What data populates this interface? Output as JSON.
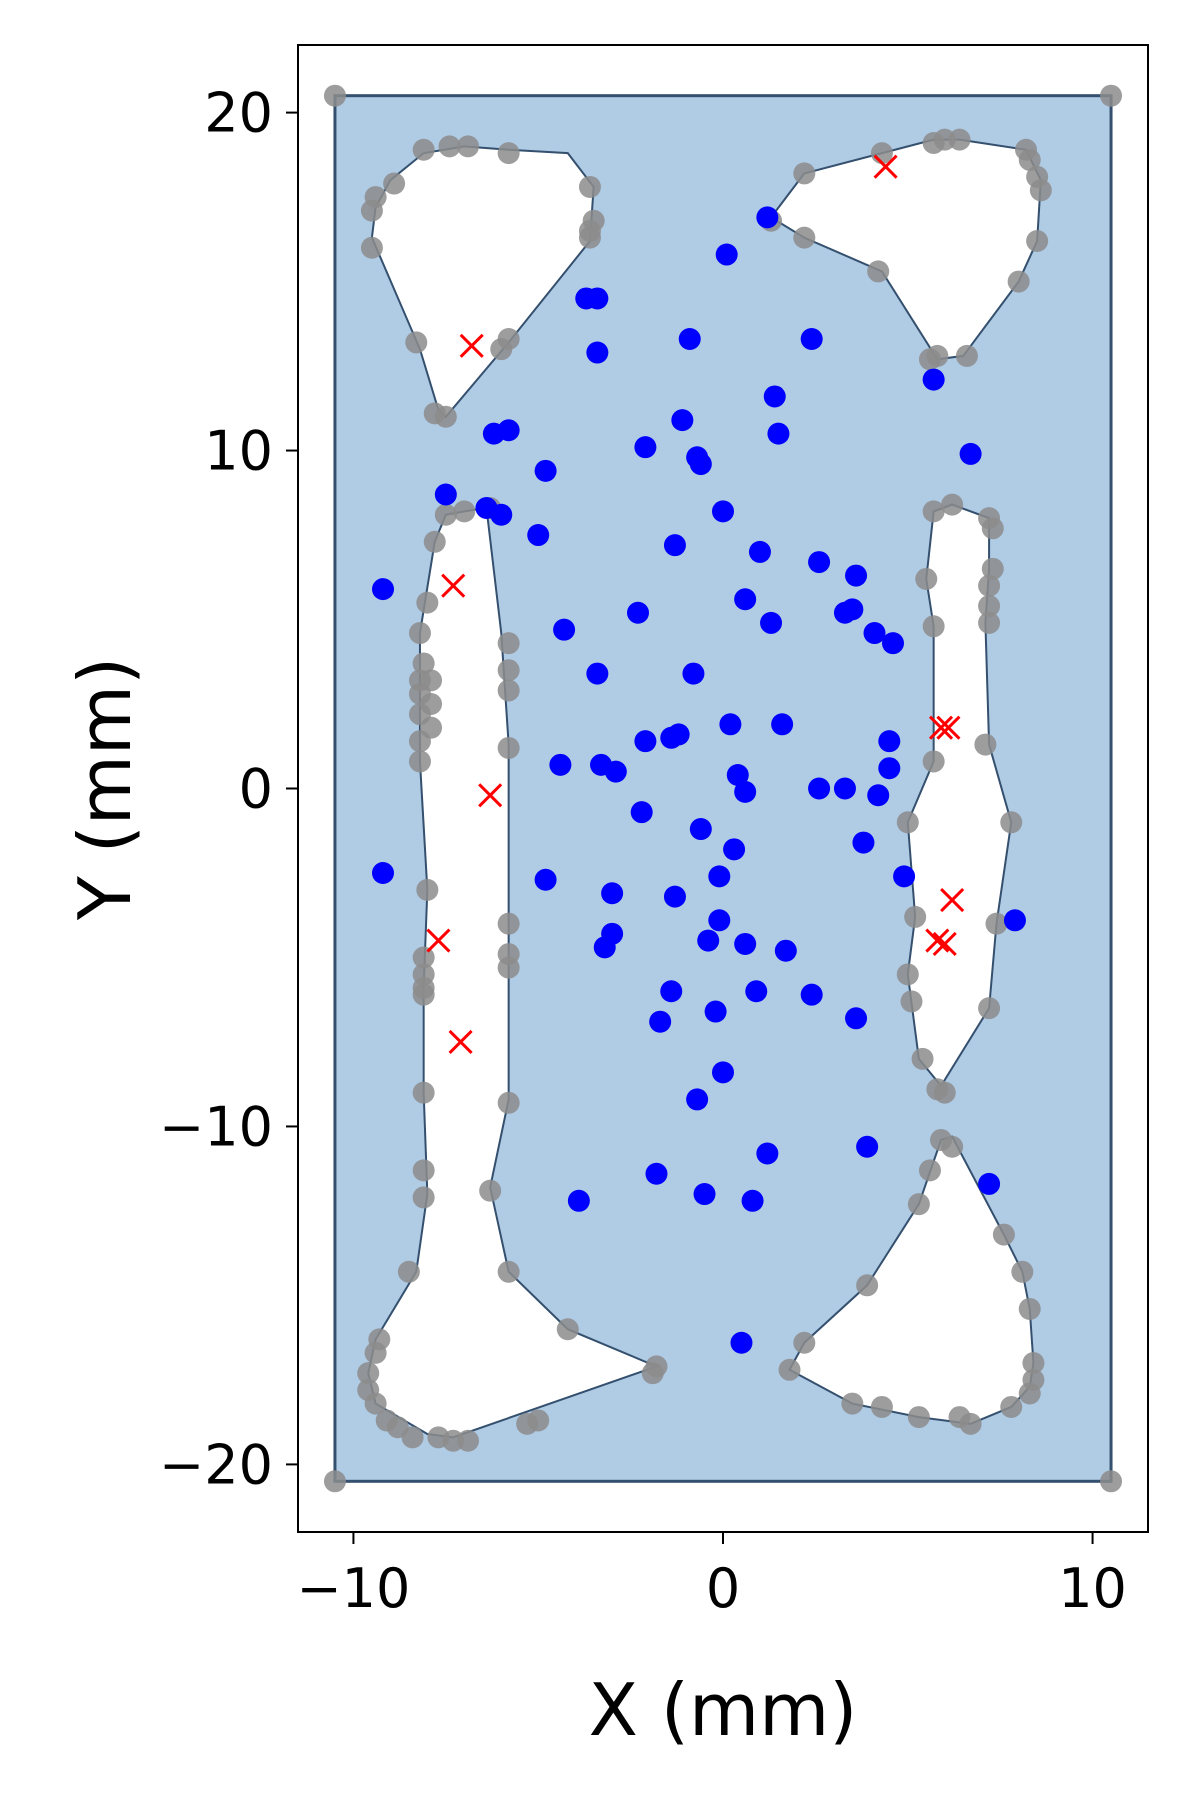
{
  "chart_data": {
    "type": "scatter",
    "title": "",
    "xlabel": "X (mm)",
    "ylabel": "Y (mm)",
    "xlim": [
      -11.5,
      11.5
    ],
    "ylim": [
      -22,
      22
    ],
    "xticks": [
      -10,
      0,
      10
    ],
    "xtick_labels": [
      "−10",
      "0",
      "10"
    ],
    "yticks": [
      -20,
      -10,
      0,
      10,
      20
    ],
    "ytick_labels": [
      "−20",
      "−10",
      "0",
      "10",
      "20"
    ],
    "grid": false,
    "legend": "none",
    "colors": {
      "domain_fill": "#b0cbe4",
      "domain_edge": "#34506e",
      "boundary_points": "#8c8c8c",
      "interior_points": "#0000ff",
      "cross_markers": "#ff0000"
    },
    "domain_rectangle": {
      "x": [
        -10.5,
        10.5
      ],
      "y": [
        -20.5,
        20.5
      ]
    },
    "holes": [
      [
        [
          -7,
          19
        ],
        [
          -8.1,
          18.8
        ],
        [
          -9,
          18
        ],
        [
          -9.4,
          17.2
        ],
        [
          -9.5,
          16.3
        ],
        [
          -8.2,
          13
        ],
        [
          -7.7,
          11.2
        ],
        [
          -7.5,
          11
        ],
        [
          -5.8,
          13.2
        ],
        [
          -3.6,
          16.2
        ],
        [
          -3.5,
          17.8
        ],
        [
          -4.2,
          18.8
        ],
        [
          -5.8,
          18.9
        ]
      ],
      [
        [
          2.2,
          18.2
        ],
        [
          4.3,
          18.8
        ],
        [
          5.7,
          19.2
        ],
        [
          6.4,
          19.2
        ],
        [
          8.2,
          18.9
        ],
        [
          8.6,
          18
        ],
        [
          8.5,
          16.2
        ],
        [
          8,
          15
        ],
        [
          6.5,
          12.8
        ],
        [
          5.8,
          12.7
        ],
        [
          4.3,
          15.3
        ],
        [
          2.2,
          16.3
        ],
        [
          1.3,
          16.9
        ]
      ],
      [
        [
          -7.8,
          7.3
        ],
        [
          -7.5,
          8.1
        ],
        [
          -7,
          8.2
        ],
        [
          -6.4,
          8.3
        ],
        [
          -6,
          4.6
        ],
        [
          -5.8,
          1.3
        ],
        [
          -5.8,
          -4
        ],
        [
          -5.8,
          -9.2
        ],
        [
          -6.3,
          -11.8
        ],
        [
          -5.8,
          -14.3
        ],
        [
          -4.2,
          -16
        ],
        [
          -1.8,
          -17.1
        ],
        [
          -7.3,
          -19.2
        ],
        [
          -8,
          -19.1
        ],
        [
          -9.4,
          -18.2
        ],
        [
          -9.6,
          -17.3
        ],
        [
          -9.4,
          -16.3
        ],
        [
          -8.3,
          -14.3
        ],
        [
          -8,
          -12
        ],
        [
          -8.1,
          -9
        ],
        [
          -8.1,
          -5.9
        ],
        [
          -8,
          -3
        ],
        [
          -8.2,
          0.8
        ],
        [
          -8.2,
          4.6
        ]
      ],
      [
        [
          5.7,
          8.2
        ],
        [
          6.2,
          8.4
        ],
        [
          7.2,
          8
        ],
        [
          7.2,
          6.5
        ],
        [
          7.1,
          4.9
        ],
        [
          7.2,
          1.3
        ],
        [
          7.8,
          -1
        ],
        [
          7.4,
          -4
        ],
        [
          7.2,
          -6.5
        ],
        [
          5.9,
          -8.8
        ],
        [
          5.3,
          -8
        ],
        [
          5,
          -5.5
        ],
        [
          5.2,
          -3.8
        ],
        [
          5,
          -1
        ],
        [
          5.7,
          0.8
        ],
        [
          5.7,
          4.8
        ],
        [
          5.5,
          6.2
        ]
      ],
      [
        [
          1.8,
          -17.2
        ],
        [
          2.2,
          -16.4
        ],
        [
          3.9,
          -14.7
        ],
        [
          5.3,
          -12.3
        ],
        [
          5.9,
          -10.4
        ],
        [
          6.2,
          -10.3
        ],
        [
          7.6,
          -13.2
        ],
        [
          8.1,
          -14.3
        ],
        [
          8.3,
          -15.4
        ],
        [
          8.4,
          -17
        ],
        [
          8.3,
          -17.7
        ],
        [
          7.8,
          -18.3
        ],
        [
          6.7,
          -18.8
        ],
        [
          5.3,
          -18.6
        ],
        [
          3.5,
          -18.2
        ]
      ]
    ],
    "boundary_points": [
      [
        -10.5,
        20.5
      ],
      [
        10.5,
        20.5
      ],
      [
        -10.5,
        -20.5
      ],
      [
        10.5,
        -20.5
      ],
      [
        -8.1,
        18.9
      ],
      [
        -7.4,
        19
      ],
      [
        -6.9,
        19
      ],
      [
        -5.8,
        18.8
      ],
      [
        -8.9,
        17.9
      ],
      [
        -9.5,
        17.1
      ],
      [
        -9.4,
        17.5
      ],
      [
        -9.5,
        16
      ],
      [
        -8.3,
        13.2
      ],
      [
        -7.8,
        11.1
      ],
      [
        -7.5,
        11
      ],
      [
        -5.8,
        13.3
      ],
      [
        -6,
        13
      ],
      [
        -3.6,
        16.3
      ],
      [
        -3.5,
        16.8
      ],
      [
        -3.6,
        17.8
      ],
      [
        -3.6,
        16.5
      ],
      [
        2.2,
        18.2
      ],
      [
        4.3,
        18.8
      ],
      [
        5.7,
        19.1
      ],
      [
        6,
        19.2
      ],
      [
        6.4,
        19.2
      ],
      [
        8.2,
        18.9
      ],
      [
        8.3,
        18.6
      ],
      [
        8.5,
        18.1
      ],
      [
        8.6,
        17.7
      ],
      [
        8.5,
        16.2
      ],
      [
        8,
        15
      ],
      [
        6.6,
        12.8
      ],
      [
        5.8,
        12.8
      ],
      [
        5.6,
        12.7
      ],
      [
        4.2,
        15.3
      ],
      [
        2.2,
        16.3
      ],
      [
        1.3,
        16.8
      ],
      [
        -7.8,
        7.3
      ],
      [
        -7.5,
        8.1
      ],
      [
        -7,
        8.2
      ],
      [
        -6.3,
        8.3
      ],
      [
        -8,
        5.5
      ],
      [
        -8.2,
        4.6
      ],
      [
        -8.2,
        3.2
      ],
      [
        -8.2,
        2.8
      ],
      [
        -8.2,
        2.2
      ],
      [
        -8.2,
        1.4
      ],
      [
        -8.2,
        0.8
      ],
      [
        -8.1,
        3.7
      ],
      [
        -7.9,
        3.2
      ],
      [
        -7.9,
        2.5
      ],
      [
        -7.9,
        1.8
      ],
      [
        -5.8,
        4.3
      ],
      [
        -5.8,
        3.5
      ],
      [
        -5.8,
        2.9
      ],
      [
        -5.8,
        1.2
      ],
      [
        -5.8,
        -4
      ],
      [
        -5.8,
        -4.9
      ],
      [
        -5.8,
        -5.3
      ],
      [
        -5.8,
        -9.3
      ],
      [
        -6.3,
        -11.9
      ],
      [
        -5.8,
        -14.3
      ],
      [
        -4.2,
        -16
      ],
      [
        -8,
        -3
      ],
      [
        -8.1,
        -5
      ],
      [
        -8.1,
        -5.5
      ],
      [
        -8.1,
        -5.9
      ],
      [
        -8.1,
        -6.1
      ],
      [
        -8.1,
        -9
      ],
      [
        -8.1,
        -11.3
      ],
      [
        -8.1,
        -12.1
      ],
      [
        -8.5,
        -14.3
      ],
      [
        -9.3,
        -16.3
      ],
      [
        -9.4,
        -16.7
      ],
      [
        -9.6,
        -17.3
      ],
      [
        -9.6,
        -17.8
      ],
      [
        -9.4,
        -18.2
      ],
      [
        -9.1,
        -18.7
      ],
      [
        -8.8,
        -18.9
      ],
      [
        -8.4,
        -19.2
      ],
      [
        -7.7,
        -19.2
      ],
      [
        -7.3,
        -19.3
      ],
      [
        -6.9,
        -19.3
      ],
      [
        -5.3,
        -18.8
      ],
      [
        -5,
        -18.7
      ],
      [
        -1.8,
        -17.1
      ],
      [
        -1.9,
        -17.3
      ],
      [
        5.7,
        8.2
      ],
      [
        6.2,
        8.4
      ],
      [
        7.2,
        8
      ],
      [
        7.3,
        7.7
      ],
      [
        7.3,
        6.5
      ],
      [
        7.2,
        6
      ],
      [
        7.2,
        5.4
      ],
      [
        7.2,
        4.9
      ],
      [
        7.1,
        1.3
      ],
      [
        5.5,
        6.2
      ],
      [
        5.7,
        4.8
      ],
      [
        5.7,
        0.8
      ],
      [
        5,
        -1
      ],
      [
        5.2,
        -3.8
      ],
      [
        5,
        -5.5
      ],
      [
        5.1,
        -6.3
      ],
      [
        5.4,
        -8
      ],
      [
        5.8,
        -8.9
      ],
      [
        6,
        -9
      ],
      [
        7.8,
        -1
      ],
      [
        7.4,
        -4
      ],
      [
        7.2,
        -6.5
      ],
      [
        1.8,
        -17.2
      ],
      [
        2.2,
        -16.4
      ],
      [
        3.9,
        -14.7
      ],
      [
        5.3,
        -12.3
      ],
      [
        5.6,
        -11.3
      ],
      [
        5.9,
        -10.4
      ],
      [
        6.2,
        -10.6
      ],
      [
        7.6,
        -13.2
      ],
      [
        8.1,
        -14.3
      ],
      [
        8.3,
        -15.4
      ],
      [
        8.4,
        -17
      ],
      [
        8.4,
        -17.5
      ],
      [
        8.3,
        -17.9
      ],
      [
        7.8,
        -18.3
      ],
      [
        6.7,
        -18.8
      ],
      [
        6.4,
        -18.6
      ],
      [
        5.3,
        -18.6
      ],
      [
        4.3,
        -18.3
      ],
      [
        3.5,
        -18.2
      ]
    ],
    "interior_points": [
      [
        1.2,
        16.9
      ],
      [
        0.1,
        15.8
      ],
      [
        -3.7,
        14.5
      ],
      [
        -3.4,
        14.5
      ],
      [
        -3.4,
        12.9
      ],
      [
        -0.9,
        13.3
      ],
      [
        2.4,
        13.3
      ],
      [
        5.7,
        12.1
      ],
      [
        1.4,
        11.6
      ],
      [
        1.5,
        10.5
      ],
      [
        -6.2,
        10.5
      ],
      [
        -5.8,
        10.6
      ],
      [
        -2.1,
        10.1
      ],
      [
        -1.1,
        10.9
      ],
      [
        -0.7,
        9.8
      ],
      [
        -0.6,
        9.6
      ],
      [
        6.7,
        9.9
      ],
      [
        -4.8,
        9.4
      ],
      [
        -7.5,
        8.7
      ],
      [
        -6.4,
        8.3
      ],
      [
        -6,
        8.1
      ],
      [
        0,
        8.2
      ],
      [
        -5,
        7.5
      ],
      [
        -1.3,
        7.2
      ],
      [
        1,
        7
      ],
      [
        2.6,
        6.7
      ],
      [
        3.6,
        6.3
      ],
      [
        -9.2,
        5.9
      ],
      [
        0.6,
        5.6
      ],
      [
        3.3,
        5.2
      ],
      [
        3.5,
        5.3
      ],
      [
        -2.3,
        5.2
      ],
      [
        1.3,
        4.9
      ],
      [
        4.1,
        4.6
      ],
      [
        4.6,
        4.3
      ],
      [
        -4.3,
        4.7
      ],
      [
        -3.4,
        3.4
      ],
      [
        -0.8,
        3.4
      ],
      [
        0.2,
        1.9
      ],
      [
        1.6,
        1.9
      ],
      [
        -1.2,
        1.6
      ],
      [
        -1.4,
        1.5
      ],
      [
        -2.1,
        1.4
      ],
      [
        4.5,
        1.4
      ],
      [
        -4.4,
        0.7
      ],
      [
        -3.3,
        0.7
      ],
      [
        -2.9,
        0.5
      ],
      [
        4.5,
        0.6
      ],
      [
        0.4,
        0.4
      ],
      [
        0.6,
        -0.1
      ],
      [
        2.6,
        0
      ],
      [
        3.3,
        0
      ],
      [
        4.2,
        -0.2
      ],
      [
        -2.2,
        -0.7
      ],
      [
        -0.6,
        -1.2
      ],
      [
        0.3,
        -1.8
      ],
      [
        3.8,
        -1.6
      ],
      [
        -9.2,
        -2.5
      ],
      [
        -4.8,
        -2.7
      ],
      [
        -0.1,
        -2.6
      ],
      [
        4.9,
        -2.6
      ],
      [
        -3,
        -3.1
      ],
      [
        -1.3,
        -3.2
      ],
      [
        -0.1,
        -3.9
      ],
      [
        -3,
        -4.3
      ],
      [
        -3.2,
        -4.7
      ],
      [
        -0.4,
        -4.5
      ],
      [
        0.6,
        -4.6
      ],
      [
        1.7,
        -4.8
      ],
      [
        7.9,
        -3.9
      ],
      [
        -1.4,
        -6
      ],
      [
        -1.7,
        -6.9
      ],
      [
        0.9,
        -6
      ],
      [
        2.4,
        -6.1
      ],
      [
        -0.2,
        -6.6
      ],
      [
        3.6,
        -6.8
      ],
      [
        0,
        -8.4
      ],
      [
        -0.7,
        -9.2
      ],
      [
        3.9,
        -10.6
      ],
      [
        1.2,
        -10.8
      ],
      [
        -1.8,
        -11.4
      ],
      [
        -0.5,
        -12
      ],
      [
        0.8,
        -12.2
      ],
      [
        -3.9,
        -12.2
      ],
      [
        7.2,
        -11.7
      ],
      [
        0.5,
        -16.4
      ]
    ],
    "cross_markers": [
      [
        -6.8,
        13.1
      ],
      [
        4.4,
        18.4
      ],
      [
        -7.3,
        6
      ],
      [
        5.9,
        1.8
      ],
      [
        6.1,
        1.8
      ],
      [
        -6.3,
        -0.2
      ],
      [
        -7.7,
        -4.5
      ],
      [
        -7.1,
        -7.5
      ],
      [
        6.2,
        -3.3
      ],
      [
        5.8,
        -4.5
      ],
      [
        6,
        -4.6
      ]
    ]
  }
}
